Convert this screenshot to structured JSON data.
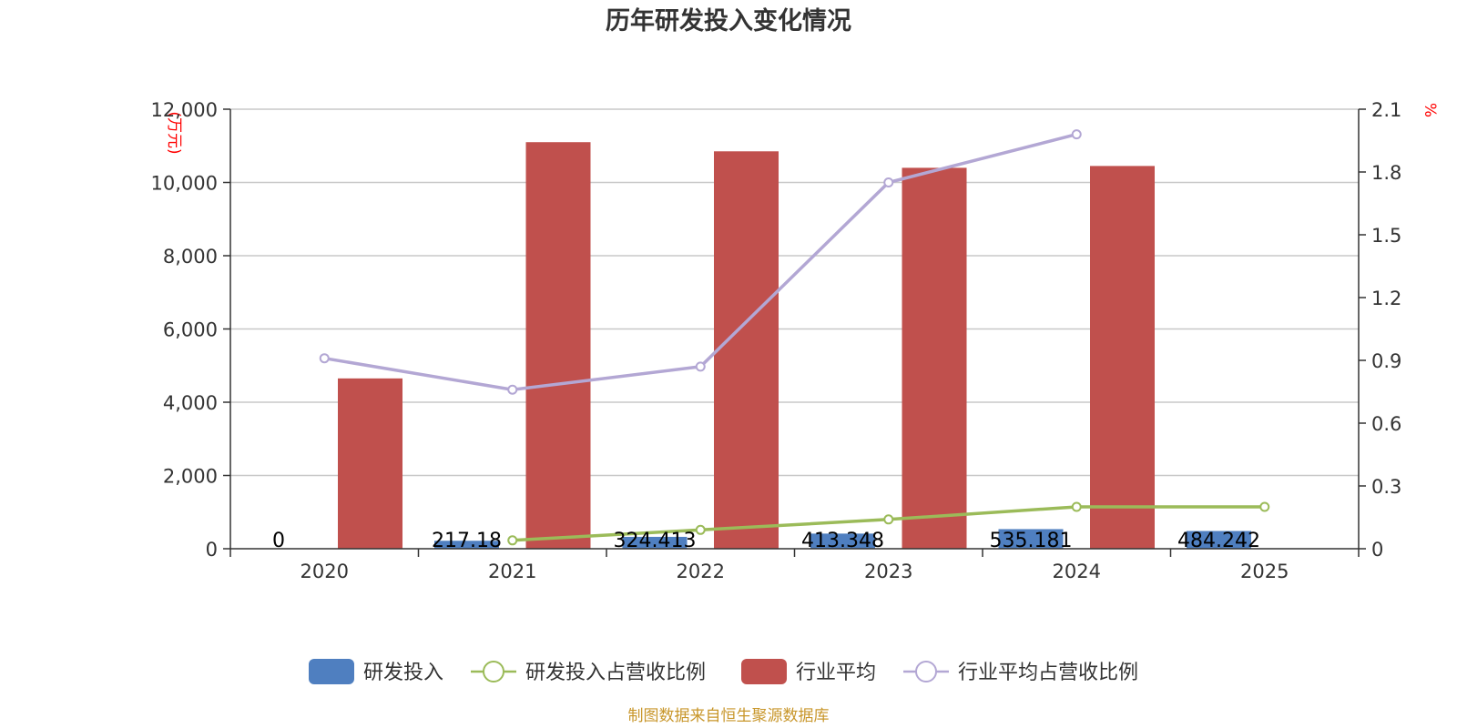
{
  "chart_data": {
    "type": "bar",
    "title": "历年研发投入变化情况",
    "categories": [
      "2020",
      "2021",
      "2022",
      "2023",
      "2024",
      "2025"
    ],
    "y_left": {
      "unit": "(万元)",
      "ylim": [
        0,
        12000
      ],
      "ticks": [
        0,
        2000,
        4000,
        6000,
        8000,
        10000,
        12000
      ],
      "tick_labels": [
        "0",
        "2,000",
        "4,000",
        "6,000",
        "8,000",
        "10,000",
        "12,000"
      ]
    },
    "y_right": {
      "unit": "%",
      "ylim": [
        0,
        2.1
      ],
      "ticks": [
        0,
        0.3,
        0.6,
        0.9,
        1.2,
        1.5,
        1.8,
        2.1
      ],
      "tick_labels": [
        "0",
        "0.3",
        "0.6",
        "0.9",
        "1.2",
        "1.5",
        "1.8",
        "2.1"
      ]
    },
    "series": [
      {
        "name": "研发投入",
        "type": "bar",
        "axis": "left",
        "color": "#4f7fc0",
        "values": [
          0,
          217.18,
          324.413,
          413.348,
          535.181,
          484.242
        ],
        "labels": [
          "0",
          "217.18",
          "324.413",
          "413.348",
          "535.181",
          "484.242"
        ]
      },
      {
        "name": "研发投入占营收比例",
        "type": "line",
        "axis": "right",
        "color": "#9bbb59",
        "values": [
          null,
          0.04,
          0.09,
          0.14,
          0.2,
          0.2
        ]
      },
      {
        "name": "行业平均",
        "type": "bar",
        "axis": "left",
        "color": "#c0504d",
        "values": [
          4650,
          11100,
          10850,
          10400,
          10450,
          null
        ]
      },
      {
        "name": "行业平均占营收比例",
        "type": "line",
        "axis": "right",
        "color": "#b3a7d4",
        "values": [
          0.91,
          0.76,
          0.87,
          1.75,
          1.98,
          null
        ]
      }
    ],
    "grid": true,
    "legend_position": "bottom"
  },
  "source": "制图数据来自恒生聚源数据库"
}
